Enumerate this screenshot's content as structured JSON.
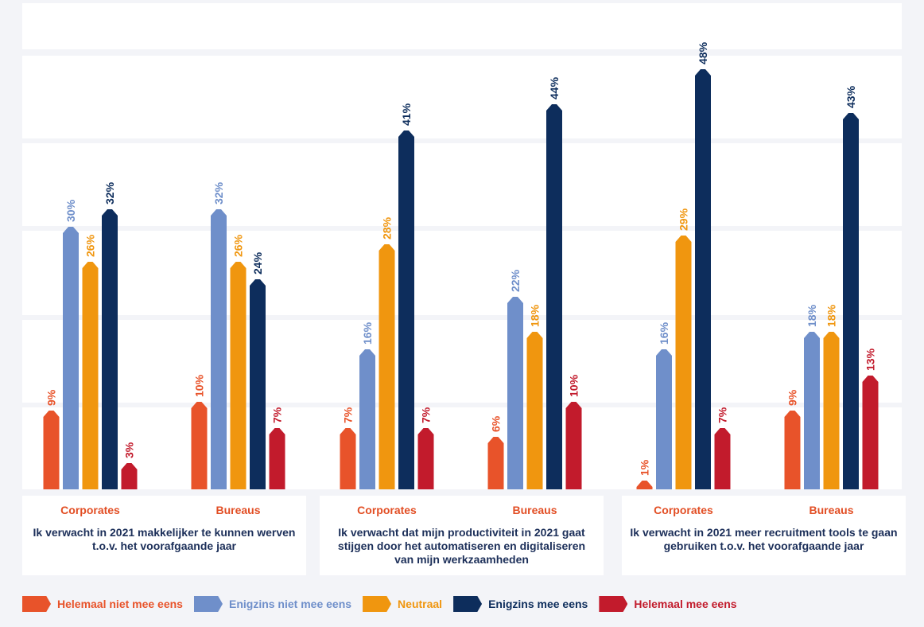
{
  "colors": {
    "helemaal_niet": "#e8532a",
    "enigzins_niet": "#6f8fca",
    "neutraal": "#f0960f",
    "enigzins_mee": "#0d2d5c",
    "helemaal_mee": "#c21b2c",
    "group_label": "#e24e24",
    "title": "#1c2f59"
  },
  "chart_data": {
    "type": "bar",
    "ylim": [
      0,
      48
    ],
    "grid": true,
    "legend_position": "bottom",
    "value_suffix": "%",
    "series": [
      {
        "name": "Helemaal niet mee eens",
        "color": "#e8532a"
      },
      {
        "name": "Enigzins niet mee eens",
        "color": "#6f8fca"
      },
      {
        "name": "Neutraal",
        "color": "#f0960f"
      },
      {
        "name": "Enigzins mee eens",
        "color": "#0d2d5c"
      },
      {
        "name": "Helemaal mee eens",
        "color": "#c21b2c"
      }
    ],
    "panels": [
      {
        "title": "Ik verwacht in 2021 makkelijker te kunnen werven t.o.v. het voorafgaande jaar",
        "groups": [
          {
            "label": "Corporates",
            "values": [
              9,
              30,
              26,
              32,
              3
            ]
          },
          {
            "label": "Bureaus",
            "values": [
              10,
              32,
              26,
              24,
              7
            ]
          }
        ]
      },
      {
        "title": "Ik verwacht dat mijn productiviteit in 2021 gaat stijgen door het automatiseren en digitaliseren van mijn werkzaamheden",
        "groups": [
          {
            "label": "Corporates",
            "values": [
              7,
              16,
              28,
              41,
              7
            ]
          },
          {
            "label": "Bureaus",
            "values": [
              6,
              22,
              18,
              44,
              10
            ]
          }
        ]
      },
      {
        "title": "Ik verwacht in 2021 meer recruitment tools te gaan gebruiken t.o.v. het voorafgaande jaar",
        "groups": [
          {
            "label": "Corporates",
            "values": [
              1,
              16,
              29,
              48,
              7
            ]
          },
          {
            "label": "Bureaus",
            "values": [
              9,
              18,
              18,
              43,
              13
            ]
          }
        ]
      }
    ]
  }
}
